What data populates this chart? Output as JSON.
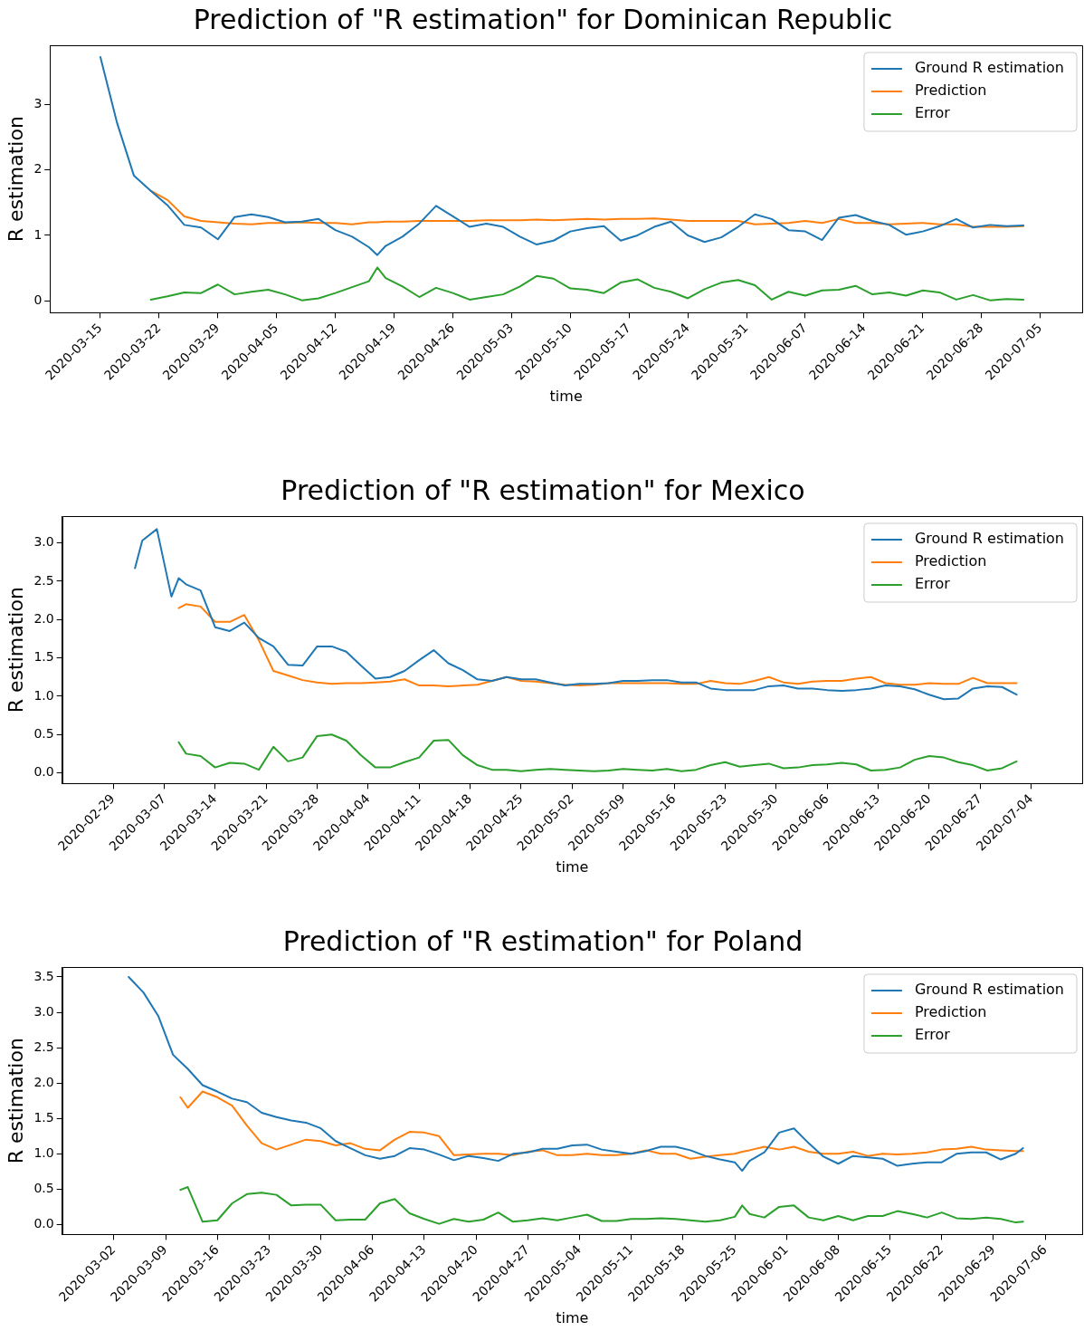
{
  "chart_data": [
    {
      "type": "line",
      "title": "Prediction of \"R estimation\" for Dominican Republic",
      "xlabel": "time",
      "ylabel": "R estimation",
      "legend": "top right",
      "x": [
        "2020-03-15",
        "2020-03-17",
        "2020-03-19",
        "2020-03-21",
        "2020-03-23",
        "2020-03-25",
        "2020-03-27",
        "2020-03-29",
        "2020-03-31",
        "2020-04-02",
        "2020-04-04",
        "2020-04-06",
        "2020-04-08",
        "2020-04-10",
        "2020-04-12",
        "2020-04-14",
        "2020-04-16",
        "2020-04-17",
        "2020-04-18",
        "2020-04-20",
        "2020-04-22",
        "2020-04-24",
        "2020-04-26",
        "2020-04-28",
        "2020-04-30",
        "2020-05-02",
        "2020-05-04",
        "2020-05-06",
        "2020-05-08",
        "2020-05-10",
        "2020-05-12",
        "2020-05-14",
        "2020-05-16",
        "2020-05-18",
        "2020-05-20",
        "2020-05-22",
        "2020-05-24",
        "2020-05-26",
        "2020-05-28",
        "2020-05-30",
        "2020-06-01",
        "2020-06-03",
        "2020-06-05",
        "2020-06-07",
        "2020-06-09",
        "2020-06-11",
        "2020-06-13",
        "2020-06-15",
        "2020-06-17",
        "2020-06-19",
        "2020-06-21",
        "2020-06-23",
        "2020-06-25",
        "2020-06-27",
        "2020-06-29",
        "2020-07-01",
        "2020-07-03"
      ],
      "series": [
        {
          "name": "Ground R estimation",
          "color": "#1f77b4",
          "values": [
            3.72,
            2.71,
            1.91,
            1.68,
            1.46,
            1.16,
            1.12,
            0.94,
            1.28,
            1.32,
            1.28,
            1.2,
            1.21,
            1.25,
            1.08,
            0.98,
            0.82,
            0.7,
            0.84,
            0.98,
            1.18,
            1.45,
            1.29,
            1.13,
            1.18,
            1.13,
            0.98,
            0.86,
            0.92,
            1.06,
            1.11,
            1.14,
            0.92,
            1.0,
            1.13,
            1.21,
            1.0,
            0.9,
            0.97,
            1.13,
            1.32,
            1.25,
            1.08,
            1.06,
            0.93,
            1.27,
            1.31,
            1.22,
            1.16,
            1.01,
            1.06,
            1.14,
            1.25,
            1.12,
            1.16,
            1.14,
            1.15
          ]
        },
        {
          "name": "Prediction",
          "color": "#ff7f0e",
          "values": [
            null,
            null,
            null,
            1.68,
            1.54,
            1.29,
            1.22,
            1.2,
            1.18,
            1.17,
            1.19,
            1.19,
            1.2,
            1.19,
            1.19,
            1.17,
            1.2,
            1.2,
            1.21,
            1.21,
            1.22,
            1.22,
            1.22,
            1.22,
            1.23,
            1.23,
            1.23,
            1.24,
            1.23,
            1.24,
            1.25,
            1.24,
            1.25,
            1.25,
            1.26,
            1.24,
            1.22,
            1.22,
            1.22,
            1.22,
            1.17,
            1.18,
            1.19,
            1.22,
            1.19,
            1.25,
            1.19,
            1.19,
            1.17,
            1.18,
            1.19,
            1.17,
            1.17,
            1.13,
            1.13,
            1.13,
            1.14
          ]
        },
        {
          "name": "Error",
          "color": "#2ca02c",
          "values": [
            null,
            null,
            null,
            0.02,
            0.07,
            0.13,
            0.12,
            0.25,
            0.1,
            0.14,
            0.17,
            0.1,
            0.01,
            0.04,
            0.12,
            0.21,
            0.3,
            0.51,
            0.35,
            0.22,
            0.06,
            0.2,
            0.12,
            0.02,
            0.06,
            0.1,
            0.22,
            0.38,
            0.34,
            0.19,
            0.17,
            0.12,
            0.28,
            0.33,
            0.2,
            0.14,
            0.04,
            0.18,
            0.28,
            0.32,
            0.24,
            0.02,
            0.14,
            0.08,
            0.16,
            0.17,
            0.23,
            0.1,
            0.13,
            0.08,
            0.16,
            0.13,
            0.02,
            0.09,
            0.01,
            0.03,
            0.02
          ]
        }
      ],
      "xlim": [
        "2020-03-09",
        "2020-07-10"
      ],
      "xticks": [
        "2020-03-15",
        "2020-03-22",
        "2020-03-29",
        "2020-04-05",
        "2020-04-12",
        "2020-04-19",
        "2020-04-26",
        "2020-05-03",
        "2020-05-10",
        "2020-05-17",
        "2020-05-24",
        "2020-05-31",
        "2020-06-07",
        "2020-06-14",
        "2020-06-21",
        "2020-06-28",
        "2020-07-05"
      ],
      "ylim": [
        -0.18,
        3.9
      ],
      "yticks": [
        0,
        1,
        2,
        3
      ],
      "grid": false
    },
    {
      "type": "line",
      "title": "Prediction of \"R estimation\" for Mexico",
      "xlabel": "time",
      "ylabel": "R estimation",
      "legend": "top right",
      "x": [
        "2020-03-03",
        "2020-03-04",
        "2020-03-06",
        "2020-03-08",
        "2020-03-09",
        "2020-03-10",
        "2020-03-12",
        "2020-03-14",
        "2020-03-16",
        "2020-03-18",
        "2020-03-20",
        "2020-03-22",
        "2020-03-24",
        "2020-03-26",
        "2020-03-28",
        "2020-03-30",
        "2020-04-01",
        "2020-04-03",
        "2020-04-05",
        "2020-04-07",
        "2020-04-09",
        "2020-04-11",
        "2020-04-13",
        "2020-04-15",
        "2020-04-17",
        "2020-04-19",
        "2020-04-21",
        "2020-04-23",
        "2020-04-25",
        "2020-04-27",
        "2020-04-29",
        "2020-05-01",
        "2020-05-03",
        "2020-05-05",
        "2020-05-07",
        "2020-05-09",
        "2020-05-11",
        "2020-05-13",
        "2020-05-15",
        "2020-05-17",
        "2020-05-19",
        "2020-05-21",
        "2020-05-23",
        "2020-05-25",
        "2020-05-27",
        "2020-05-29",
        "2020-05-31",
        "2020-06-02",
        "2020-06-04",
        "2020-06-06",
        "2020-06-08",
        "2020-06-10",
        "2020-06-12",
        "2020-06-14",
        "2020-06-16",
        "2020-06-18",
        "2020-06-20",
        "2020-06-22",
        "2020-06-24",
        "2020-06-26",
        "2020-06-28",
        "2020-06-30",
        "2020-07-02"
      ],
      "series": [
        {
          "name": "Ground R estimation",
          "color": "#1f77b4",
          "values": [
            2.67,
            3.03,
            3.18,
            2.3,
            2.54,
            2.46,
            2.38,
            1.9,
            1.85,
            1.96,
            1.76,
            1.65,
            1.41,
            1.4,
            1.65,
            1.65,
            1.58,
            1.4,
            1.23,
            1.25,
            1.33,
            1.47,
            1.6,
            1.43,
            1.34,
            1.22,
            1.2,
            1.25,
            1.22,
            1.22,
            1.18,
            1.14,
            1.16,
            1.16,
            1.17,
            1.2,
            1.2,
            1.21,
            1.21,
            1.18,
            1.18,
            1.1,
            1.08,
            1.08,
            1.08,
            1.13,
            1.14,
            1.1,
            1.1,
            1.08,
            1.07,
            1.08,
            1.1,
            1.14,
            1.13,
            1.09,
            1.02,
            0.96,
            0.97,
            1.1,
            1.13,
            1.12,
            1.02
          ]
        },
        {
          "name": "Prediction",
          "color": "#ff7f0e",
          "values": [
            null,
            null,
            null,
            null,
            2.15,
            2.2,
            2.17,
            1.97,
            1.97,
            2.06,
            1.73,
            1.33,
            1.27,
            1.21,
            1.18,
            1.16,
            1.17,
            1.17,
            1.18,
            1.19,
            1.22,
            1.14,
            1.14,
            1.13,
            1.14,
            1.15,
            1.2,
            1.25,
            1.2,
            1.19,
            1.17,
            1.15,
            1.14,
            1.15,
            1.17,
            1.17,
            1.17,
            1.17,
            1.17,
            1.16,
            1.16,
            1.2,
            1.17,
            1.16,
            1.2,
            1.25,
            1.18,
            1.16,
            1.19,
            1.2,
            1.2,
            1.23,
            1.25,
            1.17,
            1.15,
            1.15,
            1.17,
            1.16,
            1.16,
            1.24,
            1.17,
            1.17,
            1.17
          ]
        },
        {
          "name": "Error",
          "color": "#2ca02c",
          "values": [
            null,
            null,
            null,
            null,
            0.4,
            0.25,
            0.22,
            0.07,
            0.13,
            0.12,
            0.04,
            0.34,
            0.15,
            0.2,
            0.48,
            0.5,
            0.42,
            0.23,
            0.07,
            0.07,
            0.14,
            0.2,
            0.42,
            0.43,
            0.23,
            0.1,
            0.04,
            0.04,
            0.02,
            0.04,
            0.05,
            0.04,
            0.03,
            0.02,
            0.03,
            0.05,
            0.04,
            0.03,
            0.05,
            0.02,
            0.04,
            0.1,
            0.14,
            0.08,
            0.1,
            0.12,
            0.06,
            0.07,
            0.1,
            0.11,
            0.13,
            0.11,
            0.03,
            0.04,
            0.07,
            0.17,
            0.22,
            0.2,
            0.14,
            0.1,
            0.03,
            0.06,
            0.15
          ]
        }
      ],
      "xlim": [
        "2020-02-22",
        "2020-07-11"
      ],
      "xticks": [
        "2020-02-29",
        "2020-03-07",
        "2020-03-14",
        "2020-03-21",
        "2020-03-28",
        "2020-04-04",
        "2020-04-11",
        "2020-04-18",
        "2020-04-25",
        "2020-05-02",
        "2020-05-09",
        "2020-05-16",
        "2020-05-23",
        "2020-05-30",
        "2020-06-06",
        "2020-06-13",
        "2020-06-20",
        "2020-06-27",
        "2020-07-04"
      ],
      "ylim": [
        -0.14,
        3.35
      ],
      "yticks": [
        {
          "value": 0,
          "label": "0.0"
        },
        {
          "value": 0.5,
          "label": "0.5"
        },
        {
          "value": 1,
          "label": "1.0"
        },
        {
          "value": 1.5,
          "label": "1.5"
        },
        {
          "value": 2,
          "label": "2.0"
        },
        {
          "value": 2.5,
          "label": "2.5"
        },
        {
          "value": 3,
          "label": "3.0"
        }
      ],
      "grid": false
    },
    {
      "type": "line",
      "title": "Prediction of \"R estimation\" for Poland",
      "xlabel": "time",
      "ylabel": "R estimation",
      "legend": "top right",
      "x": [
        "2020-03-04",
        "2020-03-06",
        "2020-03-08",
        "2020-03-10",
        "2020-03-11",
        "2020-03-12",
        "2020-03-14",
        "2020-03-16",
        "2020-03-18",
        "2020-03-20",
        "2020-03-22",
        "2020-03-24",
        "2020-03-26",
        "2020-03-28",
        "2020-03-30",
        "2020-04-01",
        "2020-04-03",
        "2020-04-05",
        "2020-04-07",
        "2020-04-09",
        "2020-04-11",
        "2020-04-13",
        "2020-04-15",
        "2020-04-17",
        "2020-04-19",
        "2020-04-21",
        "2020-04-23",
        "2020-04-25",
        "2020-04-27",
        "2020-04-29",
        "2020-05-01",
        "2020-05-03",
        "2020-05-05",
        "2020-05-07",
        "2020-05-09",
        "2020-05-11",
        "2020-05-13",
        "2020-05-15",
        "2020-05-17",
        "2020-05-19",
        "2020-05-21",
        "2020-05-23",
        "2020-05-25",
        "2020-05-26",
        "2020-05-27",
        "2020-05-29",
        "2020-05-31",
        "2020-06-02",
        "2020-06-04",
        "2020-06-06",
        "2020-06-08",
        "2020-06-10",
        "2020-06-12",
        "2020-06-14",
        "2020-06-16",
        "2020-06-18",
        "2020-06-20",
        "2020-06-22",
        "2020-06-24",
        "2020-06-26",
        "2020-06-28",
        "2020-06-30",
        "2020-07-02",
        "2020-07-03"
      ],
      "series": [
        {
          "name": "Ground R estimation",
          "color": "#1f77b4",
          "values": [
            3.5,
            3.28,
            2.95,
            2.4,
            2.3,
            2.2,
            1.97,
            1.88,
            1.78,
            1.73,
            1.58,
            1.52,
            1.47,
            1.44,
            1.36,
            1.18,
            1.08,
            0.98,
            0.93,
            0.97,
            1.08,
            1.06,
            0.99,
            0.91,
            0.97,
            0.94,
            0.9,
            1.0,
            1.02,
            1.07,
            1.07,
            1.12,
            1.13,
            1.06,
            1.03,
            1.0,
            1.04,
            1.1,
            1.1,
            1.05,
            0.97,
            0.92,
            0.88,
            0.76,
            0.9,
            1.02,
            1.3,
            1.36,
            1.15,
            0.96,
            0.86,
            0.97,
            0.95,
            0.93,
            0.83,
            0.86,
            0.88,
            0.88,
            1.0,
            1.02,
            1.02,
            0.92,
            1.0,
            1.08
          ]
        },
        {
          "name": "Prediction",
          "color": "#ff7f0e",
          "values": [
            null,
            null,
            null,
            null,
            1.8,
            1.65,
            1.88,
            1.8,
            1.68,
            1.4,
            1.15,
            1.06,
            1.13,
            1.2,
            1.18,
            1.12,
            1.15,
            1.07,
            1.05,
            1.2,
            1.31,
            1.3,
            1.25,
            0.98,
            0.99,
            1.0,
            1.0,
            0.98,
            1.03,
            1.05,
            0.98,
            0.98,
            1.0,
            0.98,
            0.98,
            1.0,
            1.05,
            1.0,
            1.0,
            0.93,
            0.96,
            0.98,
            1.0,
            1.03,
            1.05,
            1.1,
            1.06,
            1.1,
            1.03,
            1.0,
            1.0,
            1.03,
            0.97,
            1.0,
            0.99,
            1.0,
            1.02,
            1.06,
            1.07,
            1.1,
            1.06,
            1.05,
            1.04,
            1.04
          ]
        },
        {
          "name": "Error",
          "color": "#2ca02c",
          "values": [
            null,
            null,
            null,
            null,
            0.49,
            0.53,
            0.04,
            0.06,
            0.3,
            0.43,
            0.45,
            0.42,
            0.27,
            0.28,
            0.28,
            0.06,
            0.07,
            0.07,
            0.3,
            0.36,
            0.16,
            0.08,
            0.01,
            0.08,
            0.04,
            0.07,
            0.17,
            0.04,
            0.06,
            0.09,
            0.06,
            0.1,
            0.14,
            0.05,
            0.05,
            0.08,
            0.08,
            0.09,
            0.08,
            0.06,
            0.04,
            0.06,
            0.11,
            0.27,
            0.15,
            0.1,
            0.25,
            0.27,
            0.1,
            0.06,
            0.12,
            0.06,
            0.12,
            0.12,
            0.19,
            0.15,
            0.1,
            0.17,
            0.09,
            0.08,
            0.1,
            0.08,
            0.03,
            0.04
          ]
        }
      ],
      "xlim": [
        "2020-02-24",
        "2020-07-11"
      ],
      "xticks": [
        "2020-03-02",
        "2020-03-09",
        "2020-03-16",
        "2020-03-23",
        "2020-03-30",
        "2020-04-06",
        "2020-04-13",
        "2020-04-20",
        "2020-04-27",
        "2020-05-04",
        "2020-05-11",
        "2020-05-18",
        "2020-05-25",
        "2020-06-01",
        "2020-06-08",
        "2020-06-15",
        "2020-06-22",
        "2020-06-29",
        "2020-07-06"
      ],
      "ylim": [
        -0.14,
        3.64
      ],
      "yticks": [
        {
          "value": 0,
          "label": "0.0"
        },
        {
          "value": 0.5,
          "label": "0.5"
        },
        {
          "value": 1,
          "label": "1.0"
        },
        {
          "value": 1.5,
          "label": "1.5"
        },
        {
          "value": 2,
          "label": "2.0"
        },
        {
          "value": 2.5,
          "label": "2.5"
        },
        {
          "value": 3,
          "label": "3.0"
        },
        {
          "value": 3.5,
          "label": "3.5"
        }
      ],
      "grid": false
    }
  ]
}
